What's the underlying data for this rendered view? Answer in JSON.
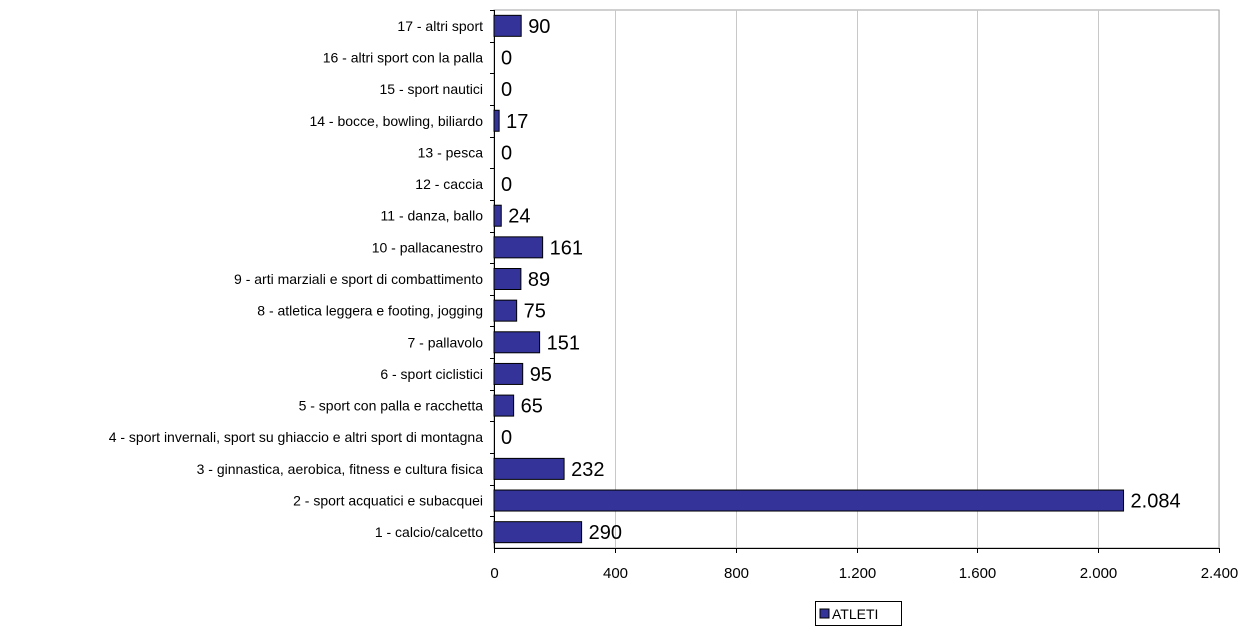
{
  "chart_data": {
    "type": "bar",
    "orientation": "horizontal",
    "categories": [
      "1 - calcio/calcetto",
      "2 - sport acquatici e subacquei",
      "3 - ginnastica, aerobica, fitness e cultura fisica",
      "4 - sport invernali, sport su ghiaccio e altri sport di montagna",
      "5 - sport con palla e racchetta",
      "6 - sport ciclistici",
      "7 - pallavolo",
      "8 - atletica leggera e footing, jogging",
      "9 - arti marziali e sport di combattimento",
      "10 - pallacanestro",
      "11 - danza, ballo",
      "12 - caccia",
      "13 - pesca",
      "14 - bocce, bowling, biliardo",
      "15 - sport nautici",
      "16 - altri sport con la palla",
      "17 - altri sport"
    ],
    "series": [
      {
        "name": "ATLETI",
        "color": "#333399",
        "values": [
          290,
          2084,
          232,
          0,
          65,
          95,
          151,
          75,
          89,
          161,
          24,
          0,
          0,
          17,
          0,
          0,
          90
        ],
        "labels": [
          "290",
          "2.084",
          "232",
          "0",
          "65",
          "95",
          "151",
          "75",
          "89",
          "161",
          "24",
          "0",
          "0",
          "17",
          "0",
          "0",
          "90"
        ]
      }
    ],
    "xlim": [
      0,
      2400
    ],
    "xticks": [
      0,
      400,
      800,
      1200,
      1600,
      2000,
      2400
    ],
    "xtick_labels": [
      "0",
      "400",
      "800",
      "1.200",
      "1.600",
      "2.000",
      "2.400"
    ],
    "grid": true,
    "legend_position": "bottom"
  }
}
